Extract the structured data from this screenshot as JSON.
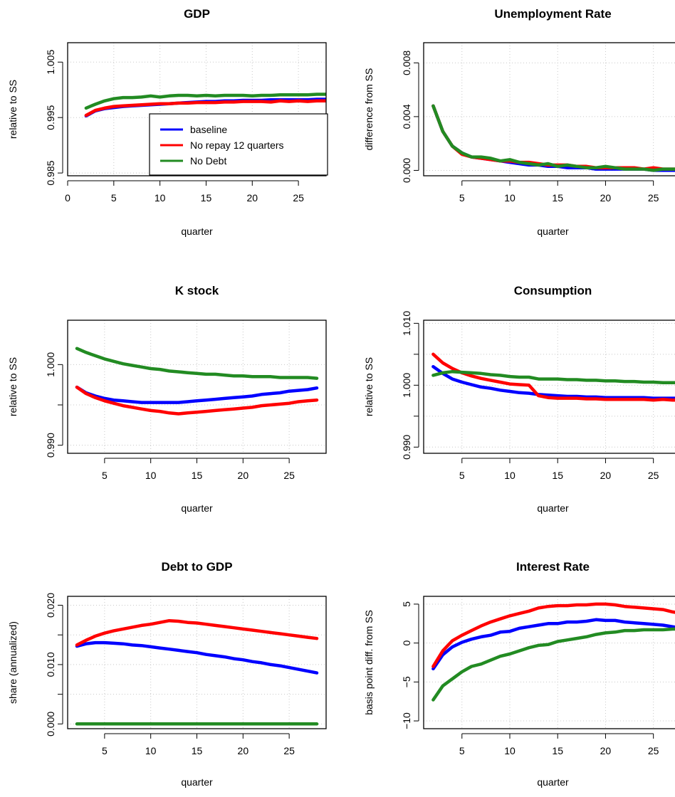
{
  "chart_data": [
    {
      "id": "gdp",
      "type": "line",
      "title": "GDP",
      "xlabel": "quarter",
      "ylabel": "relative to SS",
      "xlim": [
        0,
        28
      ],
      "ylim": [
        0.9845,
        1.0085
      ],
      "xticks": [
        0,
        5,
        10,
        15,
        20,
        25
      ],
      "yticks": [
        0.985,
        0.995,
        1.005
      ],
      "yticklabels": [
        "0.985",
        "0.995",
        "1.005"
      ],
      "grid": true,
      "legend": {
        "position": "bottom-right",
        "entries": [
          "baseline",
          "No repay 12 quarters",
          "No Debt"
        ]
      },
      "x": [
        2,
        3,
        4,
        5,
        6,
        7,
        8,
        9,
        10,
        11,
        12,
        13,
        14,
        15,
        16,
        17,
        18,
        19,
        20,
        21,
        22,
        23,
        24,
        25,
        26,
        27,
        28
      ],
      "series": [
        {
          "name": "baseline",
          "color": "#0000ff",
          "values": [
            0.9953,
            0.9962,
            0.9966,
            0.9968,
            0.997,
            0.9971,
            0.9972,
            0.9973,
            0.9974,
            0.9975,
            0.9976,
            0.9977,
            0.9978,
            0.9979,
            0.9979,
            0.998,
            0.998,
            0.9981,
            0.9981,
            0.9981,
            0.9982,
            0.9982,
            0.9982,
            0.9982,
            0.9982,
            0.9983,
            0.9983
          ]
        },
        {
          "name": "No repay 12 quarters",
          "color": "#ff0000",
          "values": [
            0.9954,
            0.9963,
            0.9967,
            0.997,
            0.9971,
            0.9972,
            0.9973,
            0.9974,
            0.9975,
            0.9975,
            0.9976,
            0.9976,
            0.9977,
            0.9977,
            0.9977,
            0.9978,
            0.9978,
            0.9979,
            0.9979,
            0.9979,
            0.9978,
            0.998,
            0.9979,
            0.998,
            0.9979,
            0.998,
            0.998
          ]
        },
        {
          "name": "No Debt",
          "color": "#228b22",
          "values": [
            0.9967,
            0.9974,
            0.998,
            0.9984,
            0.9986,
            0.9986,
            0.9987,
            0.9989,
            0.9987,
            0.9989,
            0.999,
            0.999,
            0.9989,
            0.999,
            0.9989,
            0.999,
            0.999,
            0.999,
            0.9989,
            0.999,
            0.999,
            0.9991,
            0.9991,
            0.9991,
            0.9991,
            0.9992,
            0.9992
          ]
        }
      ]
    },
    {
      "id": "unemp",
      "type": "line",
      "title": "Unemployment Rate",
      "xlabel": "quarter",
      "ylabel": "difference from SS",
      "xlim": [
        1,
        28
      ],
      "ylim": [
        -0.0004,
        0.0095
      ],
      "xticks": [
        5,
        10,
        15,
        20,
        25
      ],
      "yticks": [
        0,
        0.004,
        0.008
      ],
      "yticklabels": [
        "0.000",
        "0.004",
        "0.008"
      ],
      "grid": true,
      "x": [
        2,
        3,
        4,
        5,
        6,
        7,
        8,
        9,
        10,
        11,
        12,
        13,
        14,
        15,
        16,
        17,
        18,
        19,
        20,
        21,
        22,
        23,
        24,
        25,
        26,
        27,
        28
      ],
      "series": [
        {
          "name": "baseline",
          "color": "#0000ff",
          "values": [
            0.0048,
            0.0029,
            0.0018,
            0.0013,
            0.001,
            0.0009,
            0.0008,
            0.0007,
            0.0006,
            0.0005,
            0.0004,
            0.0004,
            0.0003,
            0.0003,
            0.0002,
            0.0002,
            0.0002,
            0.0001,
            0.0001,
            0.0001,
            0.0001,
            0.0001,
            0.0001,
            0.0,
            0.0,
            0.0,
            0.0
          ]
        },
        {
          "name": "No repay 12 quarters",
          "color": "#ff0000",
          "values": [
            0.0048,
            0.0029,
            0.0018,
            0.0012,
            0.001,
            0.0009,
            0.0008,
            0.0007,
            0.0007,
            0.0006,
            0.0006,
            0.0005,
            0.0004,
            0.0004,
            0.0004,
            0.0003,
            0.0003,
            0.0002,
            0.0002,
            0.0002,
            0.0002,
            0.0002,
            0.0001,
            0.0002,
            0.0001,
            0.0001,
            0.0001
          ]
        },
        {
          "name": "No Debt",
          "color": "#228b22",
          "values": [
            0.0048,
            0.0029,
            0.0018,
            0.0013,
            0.001,
            0.001,
            0.0009,
            0.0007,
            0.0008,
            0.0006,
            0.0005,
            0.0004,
            0.0005,
            0.0003,
            0.0004,
            0.0003,
            0.0002,
            0.0002,
            0.0003,
            0.0002,
            0.0001,
            0.0001,
            0.0001,
            0.0,
            0.0001,
            0.0001,
            0.0001
          ]
        }
      ]
    },
    {
      "id": "kstock",
      "type": "line",
      "title": "K stock",
      "xlabel": "quarter",
      "ylabel": "relative to SS",
      "xlim": [
        1,
        29
      ],
      "ylim": [
        0.989,
        1.0055
      ],
      "xticks": [
        5,
        10,
        15,
        20,
        25
      ],
      "yticks": [
        0.99,
        0.995,
        1.0
      ],
      "yticklabels": [
        "0.990",
        "",
        "1.000"
      ],
      "grid": true,
      "x": [
        2,
        3,
        4,
        5,
        6,
        7,
        8,
        9,
        10,
        11,
        12,
        13,
        14,
        15,
        16,
        17,
        18,
        19,
        20,
        21,
        22,
        23,
        24,
        25,
        26,
        27,
        28
      ],
      "series": [
        {
          "name": "baseline",
          "color": "#0000ff",
          "values": [
            0.9972,
            0.9965,
            0.9961,
            0.9958,
            0.9956,
            0.9955,
            0.9954,
            0.9953,
            0.9953,
            0.9953,
            0.9953,
            0.9953,
            0.9954,
            0.9955,
            0.9956,
            0.9957,
            0.9958,
            0.9959,
            0.996,
            0.9961,
            0.9963,
            0.9964,
            0.9965,
            0.9967,
            0.9968,
            0.9969,
            0.9971
          ]
        },
        {
          "name": "No repay 12 quarters",
          "color": "#ff0000",
          "values": [
            0.9972,
            0.9964,
            0.9959,
            0.9955,
            0.9952,
            0.9949,
            0.9947,
            0.9945,
            0.9943,
            0.9942,
            0.994,
            0.9939,
            0.994,
            0.9941,
            0.9942,
            0.9943,
            0.9944,
            0.9945,
            0.9946,
            0.9947,
            0.9949,
            0.995,
            0.9951,
            0.9952,
            0.9954,
            0.9955,
            0.9956
          ]
        },
        {
          "name": "No Debt",
          "color": "#228b22",
          "values": [
            1.002,
            1.0015,
            1.0011,
            1.0007,
            1.0004,
            1.0001,
            0.9999,
            0.9997,
            0.9995,
            0.9994,
            0.9992,
            0.9991,
            0.999,
            0.9989,
            0.9988,
            0.9988,
            0.9987,
            0.9986,
            0.9986,
            0.9985,
            0.9985,
            0.9985,
            0.9984,
            0.9984,
            0.9984,
            0.9984,
            0.9983
          ]
        }
      ]
    },
    {
      "id": "consumption",
      "type": "line",
      "title": "Consumption",
      "xlabel": "quarter",
      "ylabel": "relative to SS",
      "xlim": [
        1,
        28
      ],
      "ylim": [
        0.989,
        1.0105
      ],
      "xticks": [
        5,
        10,
        15,
        20,
        25
      ],
      "yticks": [
        0.99,
        0.995,
        1.0,
        1.005,
        1.01
      ],
      "yticklabels": [
        "0.990",
        "",
        "1.000",
        "",
        "1.010"
      ],
      "grid": true,
      "x": [
        2,
        3,
        4,
        5,
        6,
        7,
        8,
        9,
        10,
        11,
        12,
        13,
        14,
        15,
        16,
        17,
        18,
        19,
        20,
        21,
        22,
        23,
        24,
        25,
        26,
        27,
        28
      ],
      "series": [
        {
          "name": "baseline",
          "color": "#0000ff",
          "values": [
            1.003,
            1.0019,
            1.001,
            1.0005,
            1.0001,
            0.9997,
            0.9995,
            0.9992,
            0.999,
            0.9988,
            0.9987,
            0.9985,
            0.9984,
            0.9983,
            0.9982,
            0.9982,
            0.9981,
            0.9981,
            0.998,
            0.998,
            0.998,
            0.998,
            0.998,
            0.9979,
            0.9979,
            0.9979,
            0.9979
          ]
        },
        {
          "name": "No repay 12 quarters",
          "color": "#ff0000",
          "values": [
            1.005,
            1.0036,
            1.0027,
            1.002,
            1.0015,
            1.0011,
            1.0008,
            1.0005,
            1.0002,
            1.0001,
            1.0,
            0.9983,
            0.998,
            0.9979,
            0.9979,
            0.9979,
            0.9978,
            0.9978,
            0.9977,
            0.9977,
            0.9977,
            0.9977,
            0.9977,
            0.9976,
            0.9977,
            0.9976,
            0.9976
          ]
        },
        {
          "name": "No Debt",
          "color": "#228b22",
          "values": [
            1.0016,
            1.002,
            1.0022,
            1.0021,
            1.002,
            1.0019,
            1.0017,
            1.0016,
            1.0014,
            1.0013,
            1.0013,
            1.001,
            1.001,
            1.001,
            1.0009,
            1.0009,
            1.0008,
            1.0008,
            1.0007,
            1.0007,
            1.0006,
            1.0006,
            1.0005,
            1.0005,
            1.0004,
            1.0004,
            1.0004
          ]
        }
      ]
    },
    {
      "id": "debt",
      "type": "line",
      "title": "Debt to GDP",
      "xlabel": "quarter",
      "ylabel": "share (annualized)",
      "xlim": [
        1,
        29
      ],
      "ylim": [
        -0.0008,
        0.0215
      ],
      "xticks": [
        5,
        10,
        15,
        20,
        25
      ],
      "yticks": [
        0,
        0.005,
        0.01,
        0.015,
        0.02
      ],
      "yticklabels": [
        "0.000",
        "",
        "0.010",
        "",
        "0.020"
      ],
      "grid": true,
      "x": [
        2,
        3,
        4,
        5,
        6,
        7,
        8,
        9,
        10,
        11,
        12,
        13,
        14,
        15,
        16,
        17,
        18,
        19,
        20,
        21,
        22,
        23,
        24,
        25,
        26,
        27,
        28
      ],
      "series": [
        {
          "name": "baseline",
          "color": "#0000ff",
          "values": [
            0.0131,
            0.0135,
            0.0137,
            0.0137,
            0.0136,
            0.0135,
            0.0133,
            0.0132,
            0.013,
            0.0128,
            0.0126,
            0.0124,
            0.0122,
            0.012,
            0.0117,
            0.0115,
            0.0113,
            0.011,
            0.0108,
            0.0105,
            0.0103,
            0.01,
            0.0098,
            0.0095,
            0.0092,
            0.0089,
            0.0086
          ]
        },
        {
          "name": "No repay 12 quarters",
          "color": "#ff0000",
          "values": [
            0.0133,
            0.0141,
            0.0148,
            0.0153,
            0.0157,
            0.016,
            0.0163,
            0.0166,
            0.0168,
            0.0171,
            0.0174,
            0.0173,
            0.0171,
            0.017,
            0.0168,
            0.0166,
            0.0164,
            0.0162,
            0.016,
            0.0158,
            0.0156,
            0.0154,
            0.0152,
            0.015,
            0.0148,
            0.0146,
            0.0144
          ]
        },
        {
          "name": "No Debt",
          "color": "#228b22",
          "values": [
            0.0,
            0.0,
            0.0,
            0.0,
            0.0,
            0.0,
            0.0,
            0.0,
            0.0,
            0.0,
            0.0,
            0.0,
            0.0,
            0.0,
            0.0,
            0.0,
            0.0,
            0.0,
            0.0,
            0.0,
            0.0,
            0.0,
            0.0,
            0.0,
            0.0,
            0.0,
            0.0
          ]
        }
      ]
    },
    {
      "id": "interest",
      "type": "line",
      "title": "Interest Rate",
      "xlabel": "quarter",
      "ylabel": "basis point diff. from SS",
      "xlim": [
        1,
        28
      ],
      "ylim": [
        -11,
        6
      ],
      "xticks": [
        5,
        10,
        15,
        20,
        25
      ],
      "yticks": [
        -10,
        -5,
        0,
        5
      ],
      "yticklabels": [
        "−10",
        "−5",
        "0",
        "5"
      ],
      "grid": true,
      "x": [
        2,
        3,
        4,
        5,
        6,
        7,
        8,
        9,
        10,
        11,
        12,
        13,
        14,
        15,
        16,
        17,
        18,
        19,
        20,
        21,
        22,
        23,
        24,
        25,
        26,
        27,
        28
      ],
      "series": [
        {
          "name": "baseline",
          "color": "#0000ff",
          "values": [
            -3.3,
            -1.5,
            -0.5,
            0.1,
            0.5,
            0.8,
            1.0,
            1.4,
            1.5,
            1.9,
            2.1,
            2.3,
            2.5,
            2.5,
            2.7,
            2.7,
            2.8,
            3.0,
            2.9,
            2.9,
            2.7,
            2.6,
            2.5,
            2.4,
            2.3,
            2.1,
            1.9
          ]
        },
        {
          "name": "No repay 12 quarters",
          "color": "#ff0000",
          "values": [
            -3.0,
            -1.0,
            0.3,
            1.0,
            1.6,
            2.2,
            2.7,
            3.1,
            3.5,
            3.8,
            4.1,
            4.5,
            4.7,
            4.8,
            4.8,
            4.9,
            4.9,
            5.0,
            5.0,
            4.9,
            4.7,
            4.6,
            4.5,
            4.4,
            4.3,
            4.0,
            3.8
          ]
        },
        {
          "name": "No Debt",
          "color": "#228b22",
          "values": [
            -7.3,
            -5.5,
            -4.6,
            -3.7,
            -3.0,
            -2.7,
            -2.2,
            -1.7,
            -1.4,
            -1.0,
            -0.6,
            -0.3,
            -0.2,
            0.2,
            0.4,
            0.6,
            0.8,
            1.1,
            1.3,
            1.4,
            1.6,
            1.6,
            1.7,
            1.7,
            1.7,
            1.8,
            1.8
          ]
        }
      ]
    }
  ]
}
